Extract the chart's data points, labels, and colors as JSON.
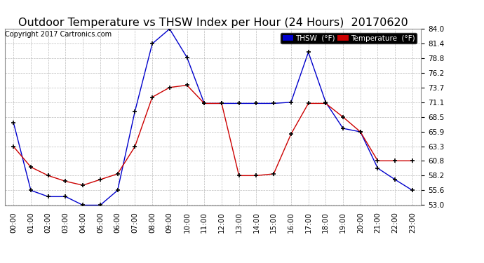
{
  "title": "Outdoor Temperature vs THSW Index per Hour (24 Hours)  20170620",
  "copyright": "Copyright 2017 Cartronics.com",
  "hours": [
    "00:00",
    "01:00",
    "02:00",
    "03:00",
    "04:00",
    "05:00",
    "06:00",
    "07:00",
    "08:00",
    "09:00",
    "10:00",
    "11:00",
    "12:00",
    "13:00",
    "14:00",
    "15:00",
    "16:00",
    "17:00",
    "18:00",
    "19:00",
    "20:00",
    "21:00",
    "22:00",
    "23:00"
  ],
  "thsw": [
    67.5,
    55.6,
    54.5,
    54.5,
    53.0,
    53.0,
    55.6,
    69.5,
    81.4,
    84.0,
    79.0,
    70.9,
    70.9,
    70.9,
    70.9,
    70.9,
    71.1,
    79.9,
    71.1,
    66.5,
    65.9,
    59.5,
    57.5,
    55.6
  ],
  "temp": [
    63.3,
    59.7,
    58.2,
    57.2,
    56.5,
    57.5,
    58.5,
    63.3,
    72.0,
    73.7,
    74.1,
    70.9,
    70.9,
    58.2,
    58.2,
    58.5,
    65.5,
    70.9,
    70.9,
    68.5,
    65.9,
    60.8,
    60.8,
    60.8
  ],
  "ylim_min": 53.0,
  "ylim_max": 84.0,
  "yticks": [
    53.0,
    55.6,
    58.2,
    60.8,
    63.3,
    65.9,
    68.5,
    71.1,
    73.7,
    76.2,
    78.8,
    81.4,
    84.0
  ],
  "thsw_color": "#0000cc",
  "temp_color": "#cc0000",
  "bg_color": "#ffffff",
  "grid_color": "#bbbbbb",
  "title_fontsize": 11.5,
  "copyright_fontsize": 7,
  "tick_fontsize": 7.5,
  "legend_thsw_label": "THSW  (°F)",
  "legend_temp_label": "Temperature  (°F)"
}
